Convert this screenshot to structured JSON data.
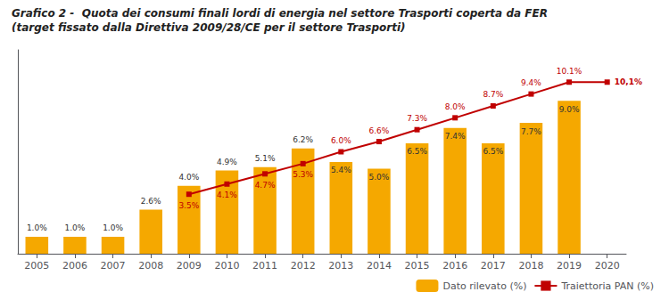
{
  "chart_data": {
    "type": "bar",
    "title": "Grafico 2 -  Quota dei consumi finali lordi di energia nel settore Trasporti coperta da FER",
    "subtitle": "(target fissato dalla Direttiva 2009/28/CE per il settore Trasporti)",
    "categories": [
      "2005",
      "2006",
      "2007",
      "2008",
      "2009",
      "2010",
      "2011",
      "2012",
      "2013",
      "2014",
      "2015",
      "2016",
      "2017",
      "2018",
      "2019",
      "2020"
    ],
    "series": [
      {
        "name": "Dato rilevato (%)",
        "type": "bar",
        "color": "#F5A800",
        "values": [
          1.0,
          1.0,
          1.0,
          2.6,
          4.0,
          4.9,
          5.1,
          6.2,
          5.4,
          5.0,
          6.5,
          7.4,
          6.5,
          7.7,
          9.0,
          null
        ],
        "value_labels": [
          "1.0%",
          "1.0%",
          "1.0%",
          "2.6%",
          "4.0%",
          "4.9%",
          "5.1%",
          "6.2%",
          "5.4%",
          "5.0%",
          "6.5%",
          "7.4%",
          "6.5%",
          "7.7%",
          "9.0%",
          null
        ]
      },
      {
        "name": "Traiettoria PAN (%)",
        "type": "line",
        "color": "#C00000",
        "marker": "square",
        "values": [
          null,
          null,
          null,
          null,
          3.5,
          4.1,
          4.7,
          5.3,
          6.0,
          6.6,
          7.3,
          8.0,
          8.7,
          9.4,
          10.1,
          10.1
        ],
        "value_labels": [
          null,
          null,
          null,
          null,
          "3.5%",
          "4.1%",
          "4.7%",
          "5.3%",
          "6.0%",
          "6.6%",
          "7.3%",
          "8.0%",
          "8.7%",
          "9.4%",
          "10.1%",
          "10,1%"
        ]
      }
    ],
    "ylim": [
      0,
      12
    ],
    "grid": false,
    "legend": "lower right",
    "data_labels": true,
    "tick_labels": "x"
  }
}
